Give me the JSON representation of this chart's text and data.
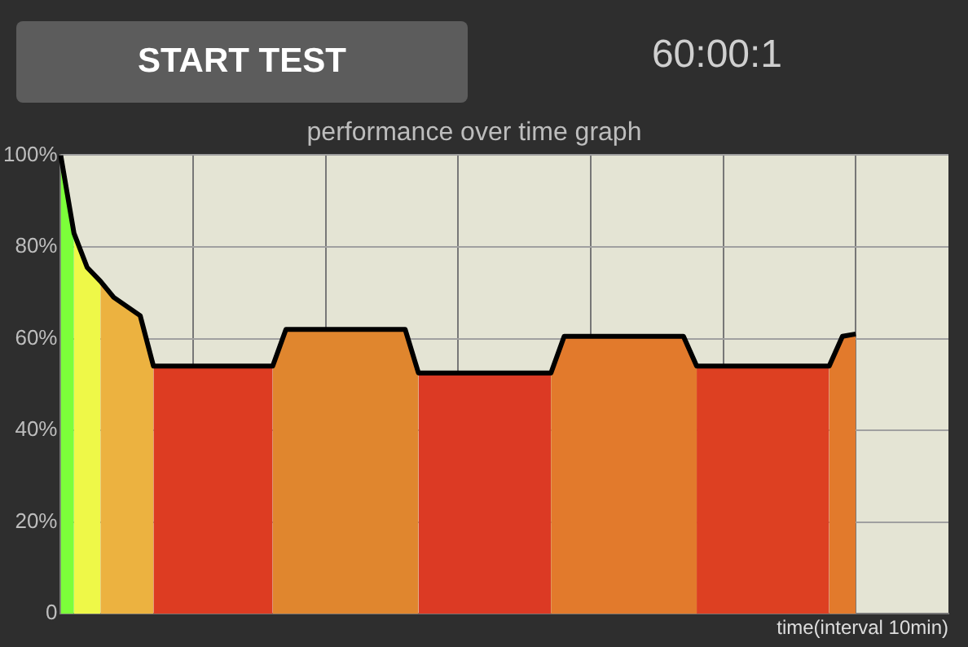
{
  "chart_data": {
    "type": "area",
    "title": "performance over time graph",
    "xlabel": "time(interval 10min)",
    "annotations": [
      "START TEST",
      "60:00:1"
    ],
    "categories": [
      null,
      null,
      null,
      null,
      null,
      null,
      null,
      null,
      null,
      null,
      null,
      null,
      null,
      null,
      null,
      null,
      null,
      null,
      null,
      null,
      null,
      null,
      null,
      null,
      null,
      null,
      null,
      null,
      null,
      null,
      null,
      null,
      null,
      null,
      null,
      null,
      null,
      null,
      null,
      null,
      null,
      null,
      null,
      null,
      null,
      null,
      null,
      null,
      null,
      null,
      null,
      null,
      null,
      null,
      null,
      null,
      null,
      null,
      null,
      null,
      null,
      null,
      null,
      null,
      null,
      null,
      null,
      null
    ],
    "series": [
      {
        "color": "#7cff3a",
        "values": [
          100,
          83,
          null,
          null,
          null,
          null,
          null,
          null,
          null,
          null,
          null,
          null,
          null,
          null,
          null,
          null,
          null,
          null,
          null,
          null,
          null,
          null,
          null,
          null,
          null,
          null,
          null,
          null,
          null,
          null,
          null,
          null,
          null,
          null,
          null,
          null,
          null,
          null,
          null,
          null,
          null,
          null,
          null,
          null,
          null,
          null,
          null,
          null,
          null,
          null,
          null,
          null,
          null,
          null,
          null,
          null,
          null,
          null,
          null,
          null,
          null,
          null,
          null,
          null,
          null,
          null,
          null,
          null
        ]
      },
      {
        "color": "#eef848",
        "values": [
          null,
          83,
          75.5,
          72.5,
          null,
          null,
          null,
          null,
          null,
          null,
          null,
          null,
          null,
          null,
          null,
          null,
          null,
          null,
          null,
          null,
          null,
          null,
          null,
          null,
          null,
          null,
          null,
          null,
          null,
          null,
          null,
          null,
          null,
          null,
          null,
          null,
          null,
          null,
          null,
          null,
          null,
          null,
          null,
          null,
          null,
          null,
          null,
          null,
          null,
          null,
          null,
          null,
          null,
          null,
          null,
          null,
          null,
          null,
          null,
          null,
          null,
          null,
          null,
          null,
          null,
          null,
          null,
          null
        ]
      },
      {
        "color": "#ecb240",
        "values": [
          null,
          null,
          null,
          72.5,
          69,
          67,
          65,
          54,
          null,
          null,
          null,
          null,
          null,
          null,
          null,
          null,
          null,
          null,
          null,
          null,
          null,
          null,
          null,
          null,
          null,
          null,
          null,
          null,
          null,
          null,
          null,
          null,
          null,
          null,
          null,
          null,
          null,
          null,
          null,
          null,
          null,
          null,
          null,
          null,
          null,
          null,
          null,
          null,
          null,
          null,
          null,
          null,
          null,
          null,
          null,
          null,
          null,
          null,
          null,
          null,
          null,
          null,
          null,
          null,
          null,
          null,
          null,
          null
        ]
      },
      {
        "color": "#dd3c22",
        "values": [
          null,
          null,
          null,
          null,
          null,
          null,
          null,
          54,
          54,
          54,
          54,
          54,
          54,
          54,
          54,
          54,
          54,
          null,
          null,
          null,
          null,
          null,
          null,
          null,
          null,
          null,
          null,
          null,
          null,
          null,
          null,
          null,
          null,
          null,
          null,
          null,
          null,
          null,
          null,
          null,
          null,
          null,
          null,
          null,
          null,
          null,
          null,
          null,
          null,
          null,
          null,
          null,
          null,
          null,
          null,
          null,
          null,
          null,
          null,
          null,
          null,
          null,
          null,
          null,
          null,
          null,
          null,
          null
        ]
      },
      {
        "color": "#e0862e",
        "values": [
          null,
          null,
          null,
          null,
          null,
          null,
          null,
          null,
          null,
          null,
          null,
          null,
          null,
          null,
          null,
          null,
          54,
          62,
          62,
          62,
          62,
          62,
          62,
          62,
          62,
          62,
          62,
          52.5,
          null,
          null,
          null,
          null,
          null,
          null,
          null,
          null,
          null,
          null,
          null,
          null,
          null,
          null,
          null,
          null,
          null,
          null,
          null,
          null,
          null,
          null,
          null,
          null,
          null,
          null,
          null,
          null,
          null,
          null,
          null,
          null,
          null,
          null,
          null,
          null,
          null,
          null,
          null,
          null
        ]
      },
      {
        "color": "#dc3a24",
        "values": [
          null,
          null,
          null,
          null,
          null,
          null,
          null,
          null,
          null,
          null,
          null,
          null,
          null,
          null,
          null,
          null,
          null,
          null,
          null,
          null,
          null,
          null,
          null,
          null,
          null,
          null,
          null,
          52.5,
          52.5,
          52.5,
          52.5,
          52.5,
          52.5,
          52.5,
          52.5,
          52.5,
          52.5,
          52.5,
          null,
          null,
          null,
          null,
          null,
          null,
          null,
          null,
          null,
          null,
          null,
          null,
          null,
          null,
          null,
          null,
          null,
          null,
          null,
          null,
          null,
          null,
          null,
          null,
          null,
          null,
          null,
          null,
          null,
          null
        ]
      },
      {
        "color": "#e27a2c",
        "values": [
          null,
          null,
          null,
          null,
          null,
          null,
          null,
          null,
          null,
          null,
          null,
          null,
          null,
          null,
          null,
          null,
          null,
          null,
          null,
          null,
          null,
          null,
          null,
          null,
          null,
          null,
          null,
          null,
          null,
          null,
          null,
          null,
          null,
          null,
          null,
          null,
          null,
          52.5,
          60.5,
          60.5,
          60.5,
          60.5,
          60.5,
          60.5,
          60.5,
          60.5,
          60.5,
          60.5,
          54,
          null,
          null,
          null,
          null,
          null,
          null,
          null,
          null,
          null,
          null,
          null,
          null,
          null,
          null,
          null,
          null,
          null,
          null,
          null
        ]
      },
      {
        "color": "#dd4022",
        "values": [
          null,
          null,
          null,
          null,
          null,
          null,
          null,
          null,
          null,
          null,
          null,
          null,
          null,
          null,
          null,
          null,
          null,
          null,
          null,
          null,
          null,
          null,
          null,
          null,
          null,
          null,
          null,
          null,
          null,
          null,
          null,
          null,
          null,
          null,
          null,
          null,
          null,
          null,
          null,
          null,
          null,
          null,
          null,
          null,
          null,
          null,
          null,
          null,
          54,
          54,
          54,
          54,
          54,
          54,
          54,
          54,
          54,
          54,
          54,
          null,
          null,
          null,
          null,
          null,
          null,
          null,
          null,
          null
        ]
      },
      {
        "color": "#e27a2c",
        "values": [
          null,
          null,
          null,
          null,
          null,
          null,
          null,
          null,
          null,
          null,
          null,
          null,
          null,
          null,
          null,
          null,
          null,
          null,
          null,
          null,
          null,
          null,
          null,
          null,
          null,
          null,
          null,
          null,
          null,
          null,
          null,
          null,
          null,
          null,
          null,
          null,
          null,
          null,
          null,
          null,
          null,
          null,
          null,
          null,
          null,
          null,
          null,
          null,
          null,
          null,
          null,
          null,
          null,
          null,
          null,
          null,
          null,
          null,
          54,
          60.5,
          61,
          null,
          null,
          null,
          null,
          null,
          null,
          null
        ]
      },
      {
        "type": "line",
        "color": "#000000",
        "values": [
          100,
          83,
          75.5,
          72.5,
          69,
          67,
          65,
          54,
          54,
          54,
          54,
          54,
          54,
          54,
          54,
          54,
          54,
          62,
          62,
          62,
          62,
          62,
          62,
          62,
          62,
          62,
          62,
          52.5,
          52.5,
          52.5,
          52.5,
          52.5,
          52.5,
          52.5,
          52.5,
          52.5,
          52.5,
          52.5,
          60.5,
          60.5,
          60.5,
          60.5,
          60.5,
          60.5,
          60.5,
          60.5,
          60.5,
          60.5,
          54,
          54,
          54,
          54,
          54,
          54,
          54,
          54,
          54,
          54,
          54,
          60.5,
          61,
          null,
          null,
          null,
          null,
          null,
          null,
          null
        ]
      }
    ],
    "ylim": [
      0,
      100
    ],
    "yticks": [
      {
        "value": 0,
        "label": "0"
      },
      {
        "value": 20,
        "label": "20%"
      },
      {
        "value": 40,
        "label": "40%"
      },
      {
        "value": 60,
        "label": "60%"
      },
      {
        "value": 80,
        "label": "80%"
      },
      {
        "value": 100,
        "label": "100%"
      }
    ],
    "grid": true,
    "tick_labels": "y",
    "legend": false,
    "marker": "none",
    "line_style": "solid"
  }
}
